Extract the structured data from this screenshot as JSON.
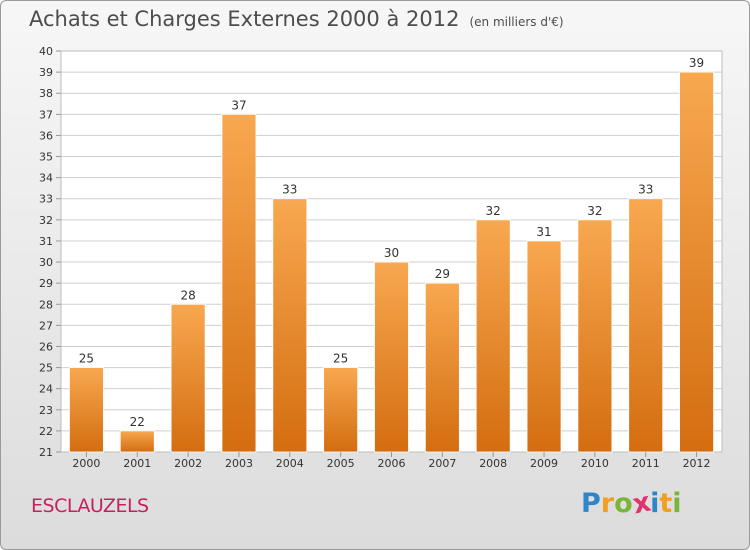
{
  "header": {
    "title": "Achats et Charges Externes 2000 à 2012",
    "unit": "(en milliers d'€)"
  },
  "footer": {
    "location": "ESCLAUZELS",
    "logo_text": "Proxiti",
    "logo_letters": [
      {
        "char": "P",
        "color": "#2e86c8"
      },
      {
        "char": "r",
        "color": "#f0a020"
      },
      {
        "char": "o",
        "color": "#7ab53a"
      },
      {
        "char": "x",
        "color": "#e0326e"
      },
      {
        "char": "i",
        "color": "#2e86c8"
      },
      {
        "char": "t",
        "color": "#f0a020"
      },
      {
        "char": "i",
        "color": "#7ab53a"
      }
    ]
  },
  "colors": {
    "bar_light": "#f8a850",
    "bar_dark": "#d46d10",
    "grid": "#cfcfcf",
    "axis_text": "#333333"
  },
  "chart_data": {
    "type": "bar",
    "title": "Achats et Charges Externes 2000 à 2012",
    "subtitle": "(en milliers d'€)",
    "xlabel": "",
    "ylabel": "",
    "categories": [
      "2000",
      "2001",
      "2002",
      "2003",
      "2004",
      "2005",
      "2006",
      "2007",
      "2008",
      "2009",
      "2010",
      "2011",
      "2012"
    ],
    "values": [
      25,
      22,
      28,
      37,
      33,
      25,
      30,
      29,
      32,
      31,
      32,
      33,
      39
    ],
    "ylim": [
      21,
      40
    ],
    "yticks": [
      21,
      22,
      23,
      24,
      25,
      26,
      27,
      28,
      29,
      30,
      31,
      32,
      33,
      34,
      35,
      36,
      37,
      38,
      39,
      40
    ],
    "grid": true,
    "data_labels": true
  }
}
